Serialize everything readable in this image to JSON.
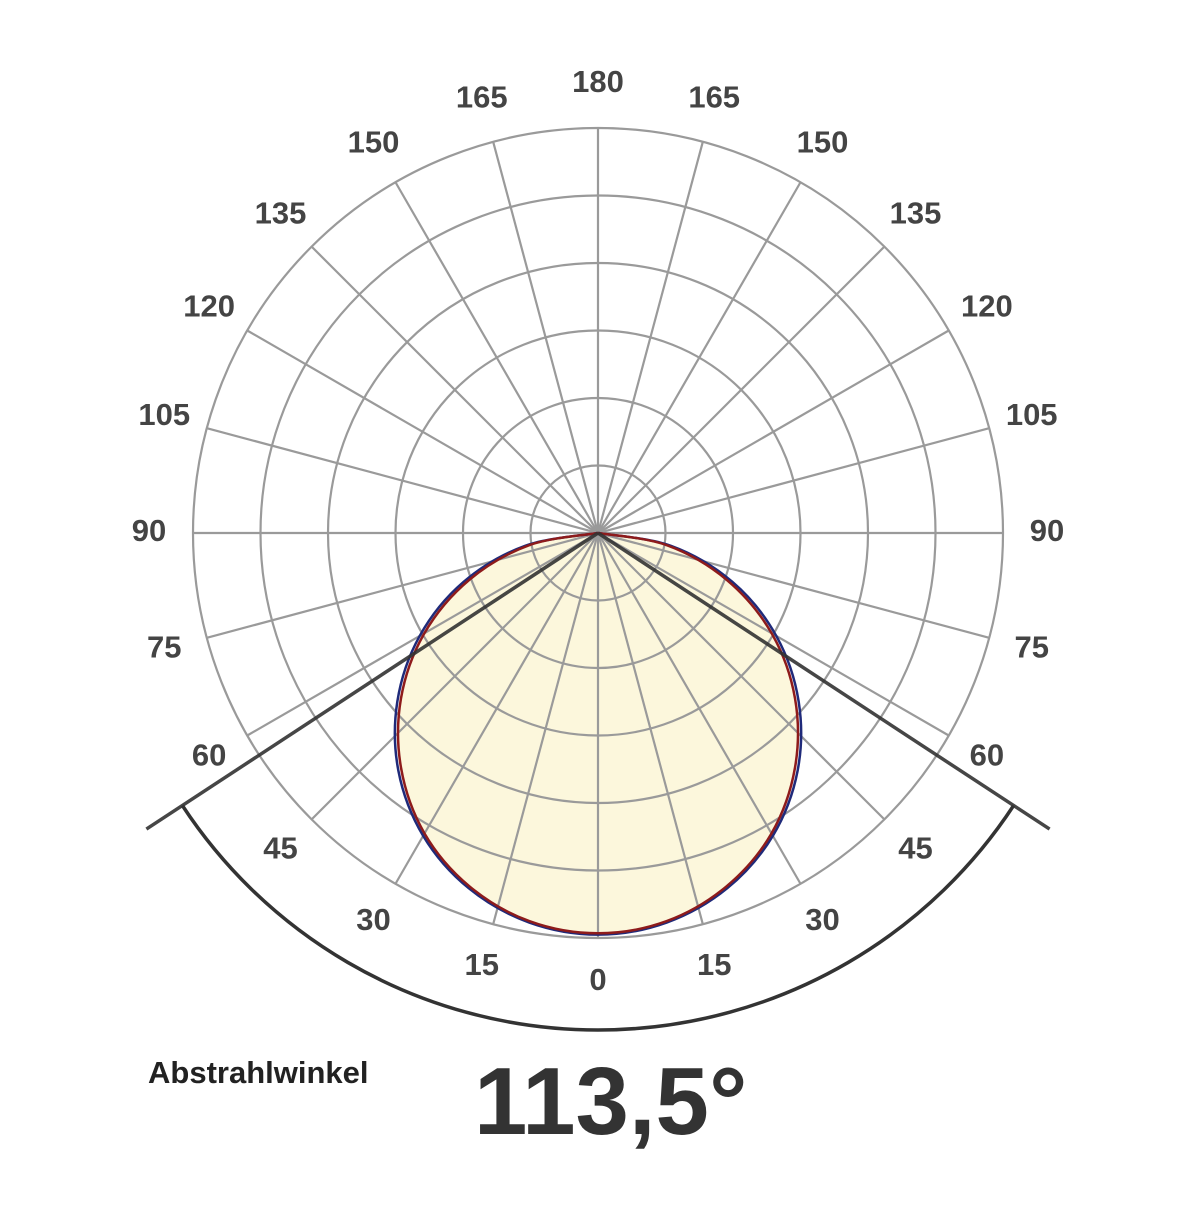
{
  "chart_data": {
    "type": "polar",
    "theta_ticks": [
      0,
      15,
      30,
      45,
      60,
      75,
      90,
      105,
      120,
      135,
      150,
      165,
      180
    ],
    "rlim": [
      0,
      6
    ],
    "rticks": [
      1,
      2,
      3,
      4,
      5,
      6
    ],
    "grid": true,
    "x": [
      -90,
      -80,
      -70,
      -60,
      -50,
      -40,
      -30,
      -20,
      -10,
      0,
      10,
      20,
      30,
      40,
      50,
      60,
      70,
      80,
      90
    ],
    "series": [
      {
        "color": "#1f2a7a",
        "values": [
          0,
          1.1,
          2.12,
          3.05,
          3.88,
          4.6,
          5.18,
          5.6,
          5.86,
          5.95,
          5.86,
          5.6,
          5.18,
          4.6,
          3.88,
          3.05,
          2.12,
          1.1,
          0
        ]
      },
      {
        "color": "#8e1b1b",
        "fill": "#fcf7dc",
        "values": [
          0,
          1.03,
          2.03,
          2.97,
          3.81,
          4.54,
          5.14,
          5.57,
          5.84,
          5.93,
          5.84,
          5.57,
          5.14,
          4.54,
          3.81,
          2.97,
          2.03,
          1.03,
          0
        ]
      }
    ],
    "beam_angle_label": "Abstrahlwinkel",
    "beam_angle": {
      "value": 113.5,
      "label": "113,5°"
    }
  }
}
